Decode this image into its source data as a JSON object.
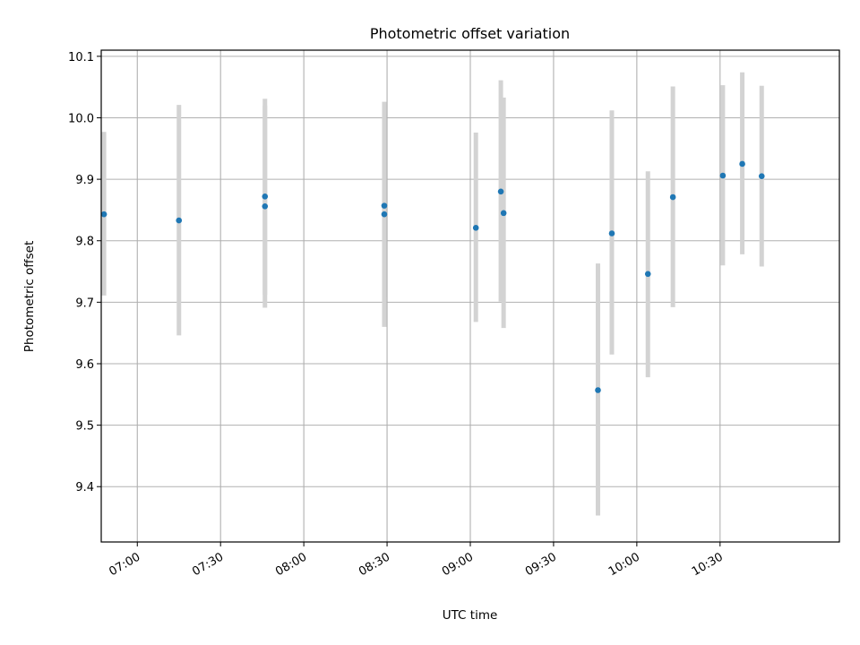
{
  "chart_data": {
    "type": "scatter",
    "title": "Photometric offset variation",
    "xlabel": "UTC time",
    "ylabel": "Photometric offset",
    "x_ticks": [
      "07:00",
      "07:30",
      "08:00",
      "08:30",
      "09:00",
      "09:30",
      "10:00",
      "10:30"
    ],
    "xlim": [
      "06:47",
      "11:13"
    ],
    "ylim": [
      9.31,
      10.11
    ],
    "y_ticks": [
      "9.4",
      "9.5",
      "9.6",
      "9.7",
      "9.8",
      "9.9",
      "10.0",
      "10.1"
    ],
    "grid": true,
    "series": [
      {
        "style": "points with error bars",
        "point_color": "#1f77b4",
        "errorbar_color": "#d3d3d3",
        "points": [
          {
            "x": "06:48",
            "y": 9.843,
            "low": 9.711,
            "high": 9.977
          },
          {
            "x": "07:15",
            "y": 9.833,
            "low": 9.646,
            "high": 10.021
          },
          {
            "x": "07:46",
            "y": 9.872,
            "low": 9.712,
            "high": 10.031
          },
          {
            "x": "07:46",
            "y": 9.856,
            "low": 9.691,
            "high": 10.02
          },
          {
            "x": "08:29",
            "y": 9.843,
            "low": 9.66,
            "high": 10.026
          },
          {
            "x": "08:29",
            "y": 9.857,
            "low": 9.708,
            "high": 10.005
          },
          {
            "x": "09:02",
            "y": 9.821,
            "low": 9.668,
            "high": 9.976
          },
          {
            "x": "09:11",
            "y": 9.88,
            "low": 9.701,
            "high": 10.061
          },
          {
            "x": "09:12",
            "y": 9.845,
            "low": 9.658,
            "high": 10.033
          },
          {
            "x": "09:46",
            "y": 9.557,
            "low": 9.353,
            "high": 9.763
          },
          {
            "x": "09:51",
            "y": 9.812,
            "low": 9.615,
            "high": 10.012
          },
          {
            "x": "10:04",
            "y": 9.746,
            "low": 9.578,
            "high": 9.913
          },
          {
            "x": "10:13",
            "y": 9.871,
            "low": 9.692,
            "high": 10.051
          },
          {
            "x": "10:31",
            "y": 9.906,
            "low": 9.76,
            "high": 10.053
          },
          {
            "x": "10:38",
            "y": 9.925,
            "low": 9.778,
            "high": 10.074
          },
          {
            "x": "10:45",
            "y": 9.905,
            "low": 9.758,
            "high": 10.052
          }
        ]
      }
    ]
  }
}
